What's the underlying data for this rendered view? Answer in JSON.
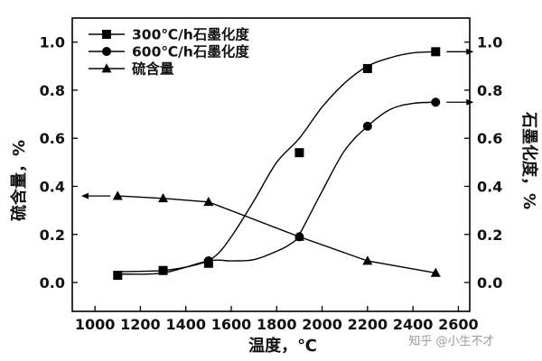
{
  "chart_data": {
    "type": "line",
    "xlabel": "温度，℃",
    "ylabel_left": "硫含量，%",
    "ylabel_right": "石墨化度，%",
    "xlim": [
      900,
      2650
    ],
    "xticks": [
      1000,
      1200,
      1400,
      1600,
      1800,
      2000,
      2200,
      2400,
      2600
    ],
    "ylim": [
      -0.12,
      1.1
    ],
    "yticks": [
      0.0,
      0.2,
      0.4,
      0.6,
      0.8,
      1.0
    ],
    "ytick_labels": [
      "0.0",
      "0.2",
      "0.4",
      "0.6",
      "0.8",
      "1.0"
    ],
    "grid": false,
    "legend_position": "top-left",
    "series": [
      {
        "name": "300℃/h石墨化度",
        "marker": "square",
        "axis": "right",
        "x": [
          1100,
          1300,
          1500,
          1900,
          2200,
          2500
        ],
        "values": [
          0.03,
          0.05,
          0.08,
          0.54,
          0.89,
          0.96
        ],
        "curve_x": [
          1100,
          1300,
          1450,
          1530,
          1600,
          1700,
          1800,
          1900,
          2000,
          2100,
          2200,
          2300,
          2400,
          2500
        ],
        "curve_y": [
          0.045,
          0.05,
          0.075,
          0.11,
          0.19,
          0.34,
          0.5,
          0.6,
          0.73,
          0.83,
          0.9,
          0.935,
          0.955,
          0.96
        ],
        "arrow": "right"
      },
      {
        "name": "600℃/h石墨化度",
        "marker": "circle",
        "axis": "right",
        "x": [
          1100,
          1300,
          1500,
          1900,
          2200,
          2500
        ],
        "values": [
          0.03,
          0.05,
          0.09,
          0.19,
          0.65,
          0.75
        ],
        "curve_x": [
          1100,
          1300,
          1500,
          1600,
          1700,
          1800,
          1860,
          1900,
          2000,
          2100,
          2200,
          2300,
          2400,
          2500
        ],
        "curve_y": [
          0.035,
          0.04,
          0.09,
          0.09,
          0.095,
          0.13,
          0.16,
          0.2,
          0.38,
          0.55,
          0.65,
          0.72,
          0.745,
          0.75
        ],
        "arrow": "right"
      },
      {
        "name": "硫含量",
        "marker": "triangle",
        "axis": "left",
        "x": [
          1100,
          1300,
          1500,
          1900,
          2200,
          2500
        ],
        "values": [
          0.36,
          0.35,
          0.335,
          0.19,
          0.09,
          0.04
        ],
        "curve_x": [
          1100,
          1300,
          1500,
          1900,
          2200,
          2500
        ],
        "curve_y": [
          0.36,
          0.35,
          0.335,
          0.19,
          0.09,
          0.04
        ],
        "arrow": "left"
      }
    ]
  },
  "watermark": "知乎 @小生不才"
}
